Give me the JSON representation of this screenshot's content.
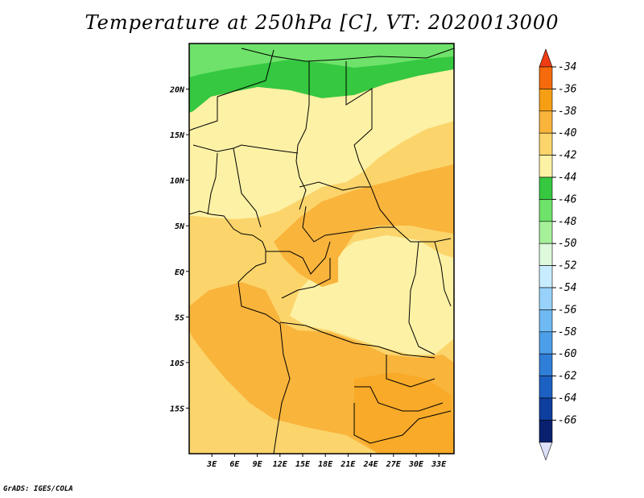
{
  "title": "Temperature at 250hPa [C], VT: 2020013000",
  "credit": "GrADS: IGES/COLA",
  "chart_data": {
    "type": "heatmap",
    "title": "Temperature at 250hPa [C], VT: 2020013000",
    "variable": "Temperature at 250hPa",
    "units": "C",
    "valid_time": "2020013000",
    "lon_range": [
      0,
      35
    ],
    "lat_range": [
      -20,
      25
    ],
    "lon_ticks": [
      "3E",
      "6E",
      "9E",
      "12E",
      "15E",
      "18E",
      "21E",
      "24E",
      "27E",
      "30E",
      "33E"
    ],
    "lat_ticks": [
      "20N",
      "15N",
      "10N",
      "5N",
      "EQ",
      "5S",
      "10S",
      "15S"
    ],
    "colorbar": {
      "labels": [
        "-34",
        "-36",
        "-38",
        "-40",
        "-42",
        "-44",
        "-46",
        "-48",
        "-50",
        "-52",
        "-54",
        "-56",
        "-58",
        "-60",
        "-62",
        "-64",
        "-66"
      ],
      "colors": [
        "#f03c14",
        "#f56a0a",
        "#f79f14",
        "#f9b43c",
        "#fbd56b",
        "#fdf1a5",
        "#35c840",
        "#6ee26a",
        "#a6f09a",
        "#ddfadc",
        "#c8ecff",
        "#98d2fa",
        "#6fbaf2",
        "#4c9ee8",
        "#2f7ed8",
        "#1c60c2",
        "#0e3e9e",
        "#08206e",
        "#dde0f8"
      ]
    },
    "grid": false,
    "legend_position": "right"
  }
}
